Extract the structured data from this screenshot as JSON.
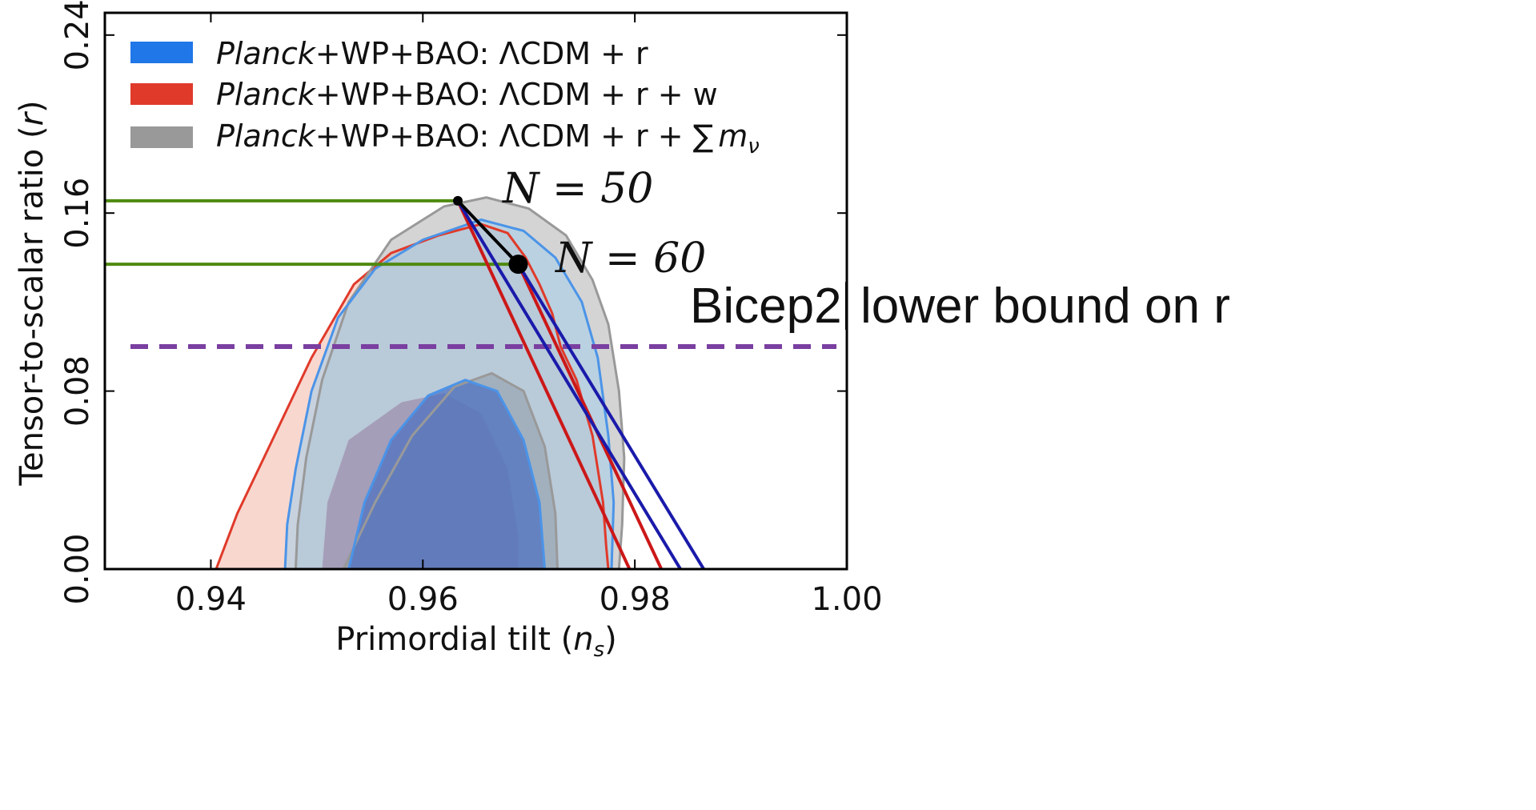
{
  "chart_data": {
    "type": "area",
    "xlabel": "Primordial tilt (",
    "xlabel_var": "n",
    "xlabel_sub": "s",
    "xlabel_close": ")",
    "ylabel": "Tensor-to-scalar ratio (",
    "ylabel_var": "r",
    "ylabel_close": ")",
    "xlim": [
      0.93,
      1.0
    ],
    "ylim": [
      0.0,
      0.25
    ],
    "x_ticks": [
      "0.94",
      "0.96",
      "0.98",
      "1.00"
    ],
    "x_tick_values": [
      0.94,
      0.96,
      0.98,
      1.0
    ],
    "y_ticks": [
      "0.00",
      "0.08",
      "0.16",
      "0.24"
    ],
    "y_tick_values": [
      0.0,
      0.08,
      0.16,
      0.24
    ],
    "legend_placement": "top-left",
    "legend": [
      {
        "label_italic": "Planck",
        "label_rest": "+WP+BAO: ΛCDM + r",
        "label_sum": "",
        "label_mnu": "",
        "color": "#1f77e8"
      },
      {
        "label_italic": "Planck",
        "label_rest": "+WP+BAO: ΛCDM + r + w",
        "label_sum": "",
        "label_mnu": "",
        "color": "#e03a2a"
      },
      {
        "label_italic": "Planck",
        "label_rest": "+WP+BAO: ΛCDM + r + ",
        "label_sum": "∑",
        "label_mnu": "m",
        "label_mnu_sub": "ν",
        "color": "#999999"
      }
    ],
    "series": [
      {
        "name": "Planck+WP+BAO: ΛCDM + r + w",
        "color": "#e03a2a",
        "fill": "#f6c9bd",
        "regions": {
          "outer": [
            [
              0.9405,
              0
            ],
            [
              0.9425,
              0.025
            ],
            [
              0.9455,
              0.055
            ],
            [
              0.9495,
              0.095
            ],
            [
              0.9535,
              0.128
            ],
            [
              0.957,
              0.142
            ],
            [
              0.9615,
              0.15
            ],
            [
              0.9655,
              0.155
            ],
            [
              0.968,
              0.151
            ],
            [
              0.9697,
              0.14
            ],
            [
              0.971,
              0.128
            ],
            [
              0.9722,
              0.115
            ],
            [
              0.973,
              0.1
            ],
            [
              0.9745,
              0.085
            ],
            [
              0.976,
              0.06
            ],
            [
              0.977,
              0.03
            ],
            [
              0.9773,
              0.01
            ],
            [
              0.9775,
              0
            ]
          ],
          "inner": []
        }
      },
      {
        "name": "Planck+WP+BAO: ΛCDM + r + ∑ m_ν",
        "color": "#999999",
        "fill": "#b7b7b7",
        "regions": {
          "outer": [
            [
              0.948,
              0
            ],
            [
              0.9482,
              0.02
            ],
            [
              0.949,
              0.05
            ],
            [
              0.9505,
              0.085
            ],
            [
              0.953,
              0.12
            ],
            [
              0.957,
              0.148
            ],
            [
              0.962,
              0.163
            ],
            [
              0.966,
              0.167
            ],
            [
              0.97,
              0.162
            ],
            [
              0.9735,
              0.15
            ],
            [
              0.976,
              0.13
            ],
            [
              0.9775,
              0.11
            ],
            [
              0.9785,
              0.08
            ],
            [
              0.979,
              0.05
            ],
            [
              0.9788,
              0.02
            ],
            [
              0.9785,
              0
            ]
          ],
          "inner": [
            [
              0.9525,
              0
            ],
            [
              0.9555,
              0.03
            ],
            [
              0.959,
              0.06
            ],
            [
              0.963,
              0.082
            ],
            [
              0.9665,
              0.088
            ],
            [
              0.9695,
              0.08
            ],
            [
              0.9715,
              0.055
            ],
            [
              0.9725,
              0.025
            ],
            [
              0.9727,
              0
            ]
          ]
        }
      },
      {
        "name": "Planck+WP+BAO: ΛCDM + r",
        "color": "#4b94e8",
        "fill": "#a9cfea",
        "regions": {
          "outer": [
            [
              0.947,
              0
            ],
            [
              0.9472,
              0.02
            ],
            [
              0.948,
              0.045
            ],
            [
              0.9495,
              0.08
            ],
            [
              0.952,
              0.113
            ],
            [
              0.9555,
              0.135
            ],
            [
              0.96,
              0.148
            ],
            [
              0.9655,
              0.157
            ],
            [
              0.9695,
              0.152
            ],
            [
              0.9725,
              0.14
            ],
            [
              0.975,
              0.12
            ],
            [
              0.9765,
              0.095
            ],
            [
              0.9775,
              0.06
            ],
            [
              0.978,
              0.03
            ],
            [
              0.9778,
              0
            ]
          ],
          "inner": [
            [
              0.953,
              0
            ],
            [
              0.9545,
              0.03
            ],
            [
              0.957,
              0.058
            ],
            [
              0.9605,
              0.078
            ],
            [
              0.964,
              0.085
            ],
            [
              0.967,
              0.08
            ],
            [
              0.9695,
              0.058
            ],
            [
              0.971,
              0.03
            ],
            [
              0.9715,
              0
            ]
          ]
        }
      }
    ],
    "red_extra_inner": [
      [
        0.9505,
        0
      ],
      [
        0.951,
        0.03
      ],
      [
        0.953,
        0.058
      ],
      [
        0.958,
        0.075
      ],
      [
        0.962,
        0.079
      ],
      [
        0.9655,
        0.07
      ],
      [
        0.968,
        0.045
      ],
      [
        0.969,
        0.015
      ],
      [
        0.969,
        0
      ]
    ],
    "n50_point": {
      "x": 0.9633,
      "y": 0.1655
    },
    "n60_point": {
      "x": 0.969,
      "y": 0.137
    },
    "model_lines": [
      {
        "color": "#cc1818",
        "points": [
          [
            0.9633,
            0.1655
          ],
          [
            0.9795,
            0
          ]
        ]
      },
      {
        "color": "#cc1818",
        "points": [
          [
            0.969,
            0.137
          ],
          [
            0.9825,
            0
          ]
        ]
      },
      {
        "color": "#1a1aaa",
        "points": [
          [
            0.9633,
            0.1655
          ],
          [
            0.9843,
            0
          ]
        ]
      },
      {
        "color": "#1a1aaa",
        "points": [
          [
            0.969,
            0.137
          ],
          [
            0.9865,
            0
          ]
        ]
      }
    ],
    "green_lines": [
      {
        "y": 0.1655,
        "x_end": 0.9633
      },
      {
        "y": 0.137,
        "x_end": 0.969
      }
    ],
    "bicep2_y": 0.1,
    "annotations": {
      "n50_label": "N = 50",
      "n60_label": "N = 60",
      "bicep2_label": "Bicep2",
      "bicep2_suffix": "lower bound on r"
    },
    "colors": {
      "green": "#4f8a10",
      "purple": "#7a3fa0",
      "black": "#000000",
      "blue_line": "#1a1aaa",
      "red_line": "#cc1818"
    }
  }
}
